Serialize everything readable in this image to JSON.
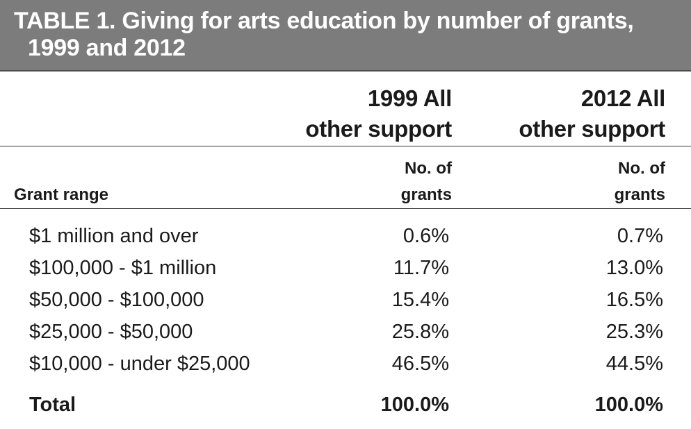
{
  "title": {
    "line1": "TABLE 1. Giving for arts education by number of grants,",
    "line2": "1999 and 2012"
  },
  "columns": [
    {
      "head_line1": "1999 All",
      "head_line2": "other support",
      "sub_line1": "No. of",
      "sub_line2": "grants"
    },
    {
      "head_line1": "2012 All",
      "head_line2": "other support",
      "sub_line1": "No. of",
      "sub_line2": "grants"
    }
  ],
  "row_header": "Grant range",
  "rows": [
    {
      "range": "$1 million and over",
      "y1999": "0.6%",
      "y2012": "0.7%"
    },
    {
      "range": "$100,000 - $1 million",
      "y1999": "11.7%",
      "y2012": "13.0%"
    },
    {
      "range": "$50,000 - $100,000",
      "y1999": "15.4%",
      "y2012": "16.5%"
    },
    {
      "range": "$25,000 - $50,000",
      "y1999": "25.8%",
      "y2012": "25.3%"
    },
    {
      "range": "$10,000 - under $25,000",
      "y1999": "46.5%",
      "y2012": "44.5%"
    }
  ],
  "total": {
    "label": "Total",
    "y1999": "100.0%",
    "y2012": "100.0%"
  },
  "colors": {
    "title_bar": "#7c7c7c",
    "title_text": "#ffffff",
    "rule": "#333333"
  }
}
